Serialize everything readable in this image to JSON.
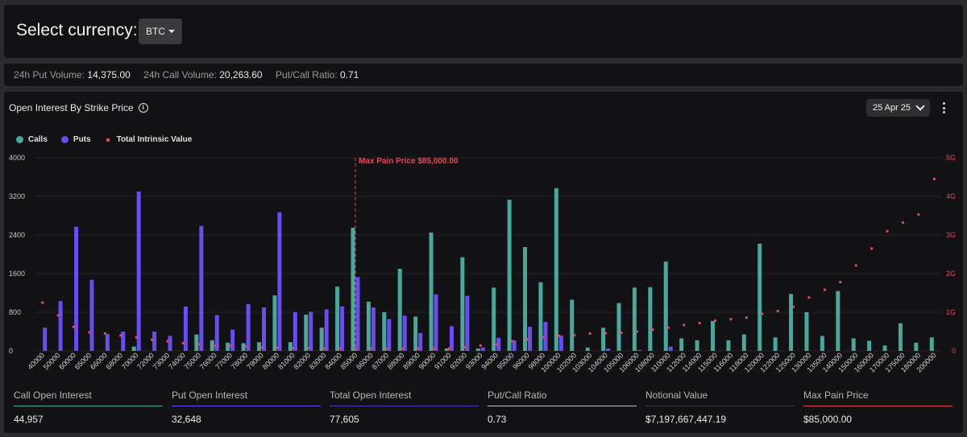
{
  "header": {
    "select_label": "Select currency:",
    "currency": "BTC"
  },
  "stats": [
    {
      "label": "24h Put Volume:",
      "value": "14,375.00"
    },
    {
      "label": "24h Call Volume:",
      "value": "20,263.60"
    },
    {
      "label": "Put/Call Ratio:",
      "value": "0.71"
    }
  ],
  "oi": {
    "title": "Open Interest By Strike Price",
    "date": "25 Apr 25"
  },
  "legend": {
    "calls": "Calls",
    "puts": "Puts",
    "tiv": "Total Intrinsic Value"
  },
  "colors": {
    "calls": "#4aa79c",
    "puts": "#6a4cf0",
    "tiv": "#e24b5b",
    "bg": "#121214"
  },
  "chart_data": {
    "type": "bar",
    "categories": [
      "40000",
      "50000",
      "60000",
      "65000",
      "66000",
      "68000",
      "70000",
      "72000",
      "73000",
      "74000",
      "75000",
      "76000",
      "77000",
      "78000",
      "79000",
      "80000",
      "81000",
      "82000",
      "83000",
      "84000",
      "85000",
      "86000",
      "87000",
      "88000",
      "89000",
      "90000",
      "91000",
      "92000",
      "93000",
      "94000",
      "95000",
      "96000",
      "98000",
      "100000",
      "102000",
      "103000",
      "104000",
      "105000",
      "106000",
      "108000",
      "110000",
      "112000",
      "114000",
      "115000",
      "116000",
      "118000",
      "120000",
      "122000",
      "125000",
      "130000",
      "135000",
      "140000",
      "150000",
      "160000",
      "170000",
      "175000",
      "180000",
      "200000"
    ],
    "series": [
      {
        "name": "Calls",
        "axis": "left",
        "values": [
          0,
          0,
          0,
          0,
          0,
          0,
          90,
          0,
          0,
          0,
          340,
          220,
          170,
          160,
          180,
          1150,
          180,
          750,
          480,
          1330,
          2550,
          1020,
          800,
          1700,
          710,
          2450,
          50,
          1940,
          50,
          1310,
          3130,
          2150,
          1420,
          3370,
          1060,
          70,
          480,
          990,
          1310,
          1320,
          1850,
          260,
          220,
          620,
          220,
          340,
          2220,
          280,
          1180,
          800,
          310,
          1240,
          260,
          210,
          110,
          570,
          170,
          280
        ]
      },
      {
        "name": "Puts",
        "axis": "left",
        "values": [
          480,
          1030,
          2570,
          1470,
          350,
          400,
          3300,
          400,
          310,
          920,
          2590,
          740,
          440,
          970,
          900,
          2870,
          800,
          810,
          860,
          920,
          1530,
          900,
          660,
          730,
          370,
          1170,
          510,
          1140,
          70,
          270,
          220,
          500,
          600,
          320,
          0,
          0,
          50,
          0,
          20,
          0,
          90,
          0,
          0,
          0,
          0,
          0,
          0,
          0,
          0,
          0,
          0,
          0,
          0,
          0,
          0,
          0,
          0,
          0
        ]
      },
      {
        "name": "Total Intrinsic Value",
        "axis": "right",
        "values": [
          1.25,
          0.92,
          0.62,
          0.48,
          0.45,
          0.4,
          0.35,
          0.29,
          0.25,
          0.2,
          0.17,
          0.13,
          0.13,
          0.11,
          0.09,
          0.08,
          0.07,
          0.07,
          0.06,
          0.06,
          0.06,
          0.06,
          0.06,
          0.06,
          0.06,
          0.06,
          0.06,
          0.1,
          0.14,
          0.17,
          0.25,
          0.3,
          0.35,
          0.39,
          0.41,
          0.45,
          0.46,
          0.47,
          0.5,
          0.55,
          0.6,
          0.67,
          0.72,
          0.78,
          0.82,
          0.86,
          0.96,
          1.03,
          1.14,
          1.38,
          1.58,
          1.78,
          2.21,
          2.65,
          3.1,
          3.32,
          3.53,
          4.45
        ]
      }
    ],
    "y_left": {
      "ticks": [
        "0",
        "800",
        "1600",
        "2400",
        "3200",
        "4000"
      ],
      "range": [
        0,
        4000
      ]
    },
    "y_right": {
      "ticks": [
        "0",
        "1G",
        "2G",
        "3G",
        "4G",
        "5G"
      ],
      "range": [
        0,
        5
      ]
    },
    "max_pain": {
      "label": "Max Pain Price $85,000.00",
      "strike": "85000"
    },
    "grid": true,
    "legend_position": "top-left"
  },
  "summary": [
    {
      "label": "Call Open Interest",
      "value": "44,957",
      "color": "#4aa79c"
    },
    {
      "label": "Put Open Interest",
      "value": "32,648",
      "color": "#6a4cf0"
    },
    {
      "label": "Total Open Interest",
      "value": "77,605",
      "color": "#4a3cbf"
    },
    {
      "label": "Put/Call Ratio",
      "value": "0.73",
      "color": "#c9c9c9"
    },
    {
      "label": "Notional Value",
      "value": "$7,197,667,447.19",
      "color": "#3a3a3d"
    },
    {
      "label": "Max Pain Price",
      "value": "$85,000.00",
      "color": "#e24b5b"
    }
  ]
}
